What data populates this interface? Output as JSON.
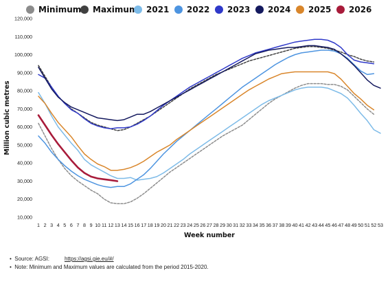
{
  "chart_data": {
    "type": "line",
    "xlabel": "Week number",
    "ylabel": "Million cubic metres",
    "ylim": [
      10000,
      120000
    ],
    "yticks": [
      10000,
      20000,
      30000,
      40000,
      50000,
      60000,
      70000,
      80000,
      90000,
      100000,
      110000,
      120000
    ],
    "ytick_labels": [
      "10,000",
      "20,000",
      "30,000",
      "40,000",
      "50,000",
      "60,000",
      "70,000",
      "80,000",
      "90,000",
      "100,000",
      "110,000",
      "120,000"
    ],
    "xlim": [
      1,
      53
    ],
    "grid": false,
    "legend": "top",
    "x": [
      1,
      2,
      3,
      4,
      5,
      6,
      7,
      8,
      9,
      10,
      11,
      12,
      13,
      14,
      15,
      16,
      17,
      18,
      19,
      20,
      21,
      22,
      23,
      24,
      25,
      26,
      27,
      28,
      29,
      30,
      31,
      32,
      33,
      34,
      35,
      36,
      37,
      38,
      39,
      40,
      41,
      42,
      43,
      44,
      45,
      46,
      47,
      48,
      49,
      50,
      51,
      52,
      53
    ],
    "series": [
      {
        "name": "Minimum",
        "color": "#8c8c8c",
        "dash": true,
        "values": [
          62000,
          55000,
          48000,
          42000,
          37000,
          33000,
          30000,
          27500,
          25000,
          23000,
          20000,
          18000,
          17500,
          17500,
          18500,
          20500,
          23000,
          26000,
          29000,
          32000,
          35000,
          37500,
          40000,
          42500,
          45000,
          47500,
          50000,
          52500,
          55000,
          57000,
          59000,
          61000,
          64000,
          67000,
          70000,
          73000,
          75500,
          77500,
          79500,
          81500,
          83000,
          84000,
          84000,
          84000,
          83500,
          83500,
          82500,
          80500,
          77000,
          73500,
          70000,
          67000,
          null
        ]
      },
      {
        "name": "Maximum",
        "color": "#404040",
        "dash": true,
        "values": [
          94000,
          88000,
          82000,
          77000,
          73000,
          70000,
          67500,
          65000,
          62500,
          61000,
          60000,
          59000,
          58000,
          58500,
          60000,
          62000,
          64000,
          66000,
          68500,
          71000,
          73500,
          76000,
          78500,
          81000,
          83000,
          85000,
          87000,
          89000,
          90500,
          92000,
          93500,
          95000,
          96500,
          97500,
          98500,
          99500,
          100500,
          101500,
          102500,
          103500,
          104000,
          104500,
          104500,
          104000,
          103500,
          102500,
          101500,
          100000,
          99000,
          97500,
          96500,
          96000,
          null
        ]
      },
      {
        "name": "2021",
        "color": "#7dbbe8",
        "dash": false,
        "values": [
          79000,
          73000,
          66000,
          60000,
          55500,
          51000,
          47000,
          42000,
          39000,
          37000,
          35000,
          33000,
          31500,
          31500,
          32000,
          30500,
          31000,
          31500,
          32500,
          34500,
          37000,
          39500,
          42000,
          45000,
          47500,
          50000,
          52500,
          55000,
          57500,
          60000,
          62500,
          65000,
          67500,
          70000,
          72500,
          74500,
          76000,
          77500,
          79000,
          80500,
          81500,
          82000,
          82000,
          82000,
          81500,
          80000,
          78500,
          76000,
          72000,
          67500,
          63500,
          58500,
          56500
        ]
      },
      {
        "name": "2022",
        "color": "#4d94e0",
        "dash": false,
        "values": [
          55000,
          51000,
          46000,
          42000,
          38500,
          35500,
          33000,
          31000,
          29500,
          28000,
          27000,
          26500,
          27000,
          27000,
          28500,
          31000,
          33500,
          37000,
          41000,
          45000,
          48500,
          52000,
          55000,
          58000,
          61000,
          64000,
          67000,
          70000,
          73000,
          76000,
          79000,
          82000,
          84500,
          87000,
          89500,
          92000,
          94500,
          96500,
          98500,
          100000,
          101000,
          101500,
          102000,
          102500,
          102500,
          102000,
          100500,
          98000,
          94500,
          91000,
          89000,
          89500,
          null
        ]
      },
      {
        "name": "2023",
        "color": "#2f39c9",
        "dash": false,
        "values": [
          89000,
          87000,
          82000,
          77000,
          73000,
          69500,
          67500,
          64500,
          62000,
          60500,
          59500,
          59000,
          59500,
          59500,
          60000,
          61500,
          63500,
          66000,
          69000,
          72000,
          74500,
          77000,
          79500,
          82000,
          84000,
          86000,
          88000,
          90000,
          92000,
          94000,
          96000,
          98000,
          99500,
          101000,
          102000,
          103000,
          104000,
          105000,
          106000,
          107000,
          107500,
          108000,
          108500,
          108500,
          108000,
          106500,
          104000,
          100000,
          97000,
          96000,
          95500,
          95000,
          null
        ]
      },
      {
        "name": "2024",
        "color": "#14195e",
        "dash": false,
        "values": [
          93000,
          87000,
          81000,
          76500,
          73500,
          71000,
          69500,
          68000,
          66500,
          65000,
          64500,
          64000,
          63500,
          64000,
          65500,
          67000,
          67000,
          68500,
          70500,
          72500,
          74500,
          76500,
          78500,
          80500,
          82500,
          84500,
          86500,
          88500,
          90500,
          92500,
          94500,
          96500,
          98500,
          100500,
          101500,
          102500,
          103000,
          103500,
          104000,
          104000,
          104500,
          105000,
          105000,
          104500,
          104000,
          103000,
          100500,
          97500,
          94000,
          90000,
          86000,
          83000,
          81500
        ]
      },
      {
        "name": "2025",
        "color": "#d9862b",
        "dash": false,
        "values": [
          77000,
          73000,
          67500,
          62500,
          58500,
          54500,
          49500,
          45000,
          42000,
          39500,
          38000,
          36000,
          36000,
          36500,
          37500,
          39000,
          41000,
          43500,
          46000,
          48000,
          50000,
          53000,
          55500,
          58000,
          60500,
          63000,
          65500,
          68000,
          70500,
          73000,
          75500,
          78000,
          80500,
          82500,
          84500,
          86500,
          88000,
          89500,
          90000,
          90500,
          90500,
          90500,
          90500,
          90500,
          90500,
          89500,
          86500,
          82500,
          78500,
          75500,
          72000,
          69500,
          null
        ]
      },
      {
        "name": "2026",
        "color": "#a81b3a",
        "dash": false,
        "values": [
          66500,
          61000,
          55500,
          50500,
          46000,
          41500,
          37500,
          34500,
          32500,
          31500,
          31000,
          30500,
          30000,
          null,
          null,
          null,
          null,
          null,
          null,
          null,
          null,
          null,
          null,
          null,
          null,
          null,
          null,
          null,
          null,
          null,
          null,
          null,
          null,
          null,
          null,
          null,
          null,
          null,
          null,
          null,
          null,
          null,
          null,
          null,
          null,
          null,
          null,
          null,
          null,
          null,
          null,
          null,
          null
        ]
      }
    ]
  },
  "notes": {
    "source_label": "Source: AGSI:",
    "source_link": "https://agsi.gie.eu/#/",
    "note": "Note: Minimum and Maximum values are calculated from the period 2015-2020."
  }
}
